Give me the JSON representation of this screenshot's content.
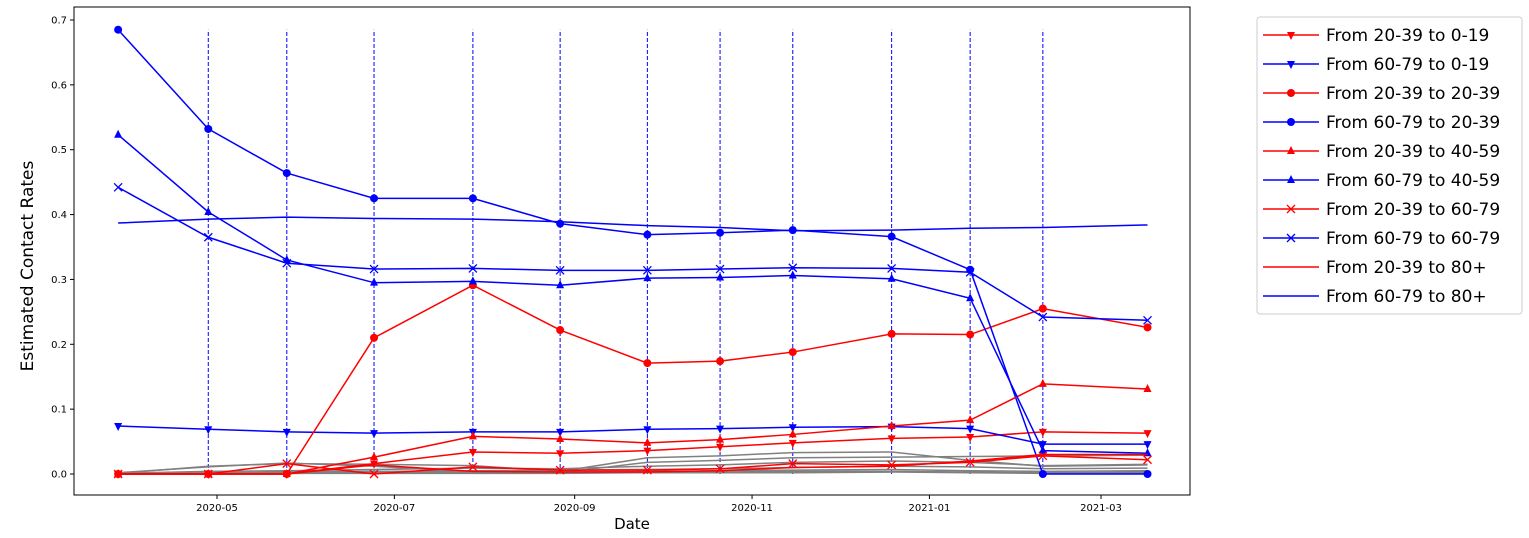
{
  "chart_data": {
    "type": "line",
    "xlabel": "Date",
    "ylabel": "Estimated Contact Rates",
    "ylim": [
      0,
      0.7
    ],
    "y_ticks": [
      0.0,
      0.1,
      0.2,
      0.3,
      0.4,
      0.5,
      0.6,
      0.7
    ],
    "y_tick_labels": [
      "0.0",
      "0.1",
      "0.2",
      "0.3",
      "0.4",
      "0.5",
      "0.6",
      "0.7"
    ],
    "x_ticks": [
      "2020-05-01",
      "2020-07-01",
      "2020-09-01",
      "2020-11-01",
      "2021-01-01",
      "2021-03-01"
    ],
    "x_tick_labels": [
      "2020-05",
      "2020-07",
      "2020-09",
      "2020-11",
      "2021-01",
      "2021-03"
    ],
    "grid": false,
    "legend_position": "outside right, top",
    "x_dates": [
      "2020-03-28",
      "2020-04-28",
      "2020-05-25",
      "2020-06-24",
      "2020-07-28",
      "2020-08-27",
      "2020-09-26",
      "2020-10-21",
      "2020-11-15",
      "2020-12-19",
      "2021-01-15",
      "2021-02-09",
      "2021-03-17"
    ],
    "vlines": [
      "2020-04-28",
      "2020-05-25",
      "2020-06-24",
      "2020-07-28",
      "2020-08-27",
      "2020-09-26",
      "2020-10-21",
      "2020-11-15",
      "2020-12-19",
      "2021-01-15",
      "2021-02-09"
    ],
    "vline_range": [
      0,
      0.685
    ],
    "vline_color": "#0000ff",
    "series": [
      {
        "name": "From 20-39 to 0-19",
        "color": "#ff0000",
        "marker": "triangle-down",
        "values": [
          0.0,
          0.0,
          0.0,
          0.016,
          0.034,
          0.032,
          0.036,
          0.042,
          0.048,
          0.055,
          0.057,
          0.065,
          0.063
        ]
      },
      {
        "name": "From 60-79 to 0-19",
        "color": "#0000ff",
        "marker": "triangle-down",
        "values": [
          0.074,
          0.069,
          0.065,
          0.063,
          0.065,
          0.065,
          0.069,
          0.07,
          0.072,
          0.073,
          0.07,
          0.046,
          0.046
        ]
      },
      {
        "name": "From 20-39 to 20-39",
        "color": "#ff0000",
        "marker": "circle",
        "values": [
          0.0,
          0.0,
          0.0,
          0.21,
          0.291,
          0.222,
          0.171,
          0.174,
          0.188,
          0.216,
          0.215,
          0.255,
          0.226
        ]
      },
      {
        "name": "From 60-79 to 20-39",
        "color": "#0000ff",
        "marker": "circle",
        "values": [
          0.685,
          0.532,
          0.464,
          0.425,
          0.425,
          0.386,
          0.369,
          0.372,
          0.376,
          0.366,
          0.315,
          0.0,
          0.0
        ]
      },
      {
        "name": "From 20-39 to 40-59",
        "color": "#ff0000",
        "marker": "triangle-up",
        "values": [
          0.0,
          0.0,
          0.0,
          0.026,
          0.058,
          0.054,
          0.048,
          0.053,
          0.061,
          0.074,
          0.083,
          0.139,
          0.131
        ]
      },
      {
        "name": "From 60-79 to 40-59",
        "color": "#0000ff",
        "marker": "triangle-up",
        "values": [
          0.523,
          0.404,
          0.33,
          0.295,
          0.297,
          0.291,
          0.302,
          0.303,
          0.306,
          0.301,
          0.271,
          0.036,
          0.032
        ]
      },
      {
        "name": "From 20-39 to 60-79",
        "color": "#ff0000",
        "marker": "x",
        "values": [
          0.0,
          0.0,
          0.016,
          0.0,
          0.011,
          0.006,
          0.006,
          0.008,
          0.016,
          0.014,
          0.018,
          0.028,
          0.022
        ]
      },
      {
        "name": "From 60-79 to 60-79",
        "color": "#0000ff",
        "marker": "x",
        "values": [
          0.442,
          0.365,
          0.325,
          0.316,
          0.317,
          0.314,
          0.314,
          0.316,
          0.318,
          0.317,
          0.311,
          0.242,
          0.237
        ]
      },
      {
        "name": "From 20-39 to 80+",
        "color": "#ff0000",
        "marker": "none",
        "values": [
          0.0,
          0.0,
          0.0,
          0.014,
          0.004,
          0.003,
          0.003,
          0.005,
          0.01,
          0.012,
          0.02,
          0.03,
          0.03
        ]
      },
      {
        "name": "From 60-79 to 80+",
        "color": "#0000ff",
        "marker": "none",
        "values": [
          0.387,
          0.393,
          0.396,
          0.394,
          0.393,
          0.389,
          0.383,
          0.38,
          0.375,
          0.376,
          0.379,
          0.38,
          0.384
        ]
      }
    ],
    "background_series_color": "#808080",
    "background_series": [
      {
        "values": [
          0.002,
          0.011,
          0.017,
          0.012,
          0.003,
          0.002,
          0.018,
          0.021,
          0.025,
          0.026,
          0.027,
          0.028,
          0.029
        ]
      },
      {
        "values": [
          0.001,
          0.012,
          0.016,
          0.015,
          0.013,
          0.004,
          0.025,
          0.028,
          0.033,
          0.034,
          0.021,
          0.012,
          0.014
        ]
      },
      {
        "values": [
          0.001,
          0.004,
          0.005,
          0.007,
          0.009,
          0.008,
          0.012,
          0.014,
          0.018,
          0.02,
          0.018,
          0.013,
          0.015
        ]
      },
      {
        "values": [
          0.0,
          0.002,
          0.003,
          0.004,
          0.005,
          0.006,
          0.007,
          0.008,
          0.01,
          0.012,
          0.011,
          0.008,
          0.009
        ]
      },
      {
        "values": [
          0.0,
          0.001,
          0.002,
          0.002,
          0.003,
          0.003,
          0.004,
          0.005,
          0.006,
          0.007,
          0.005,
          0.004,
          0.005
        ]
      },
      {
        "values": [
          0.0,
          0.001,
          0.001,
          0.002,
          0.002,
          0.002,
          0.003,
          0.003,
          0.004,
          0.004,
          0.003,
          0.002,
          0.003
        ]
      },
      {
        "values": [
          0.0,
          0.0,
          0.001,
          0.001,
          0.001,
          0.001,
          0.002,
          0.002,
          0.002,
          0.003,
          0.002,
          0.001,
          0.002
        ]
      }
    ]
  }
}
